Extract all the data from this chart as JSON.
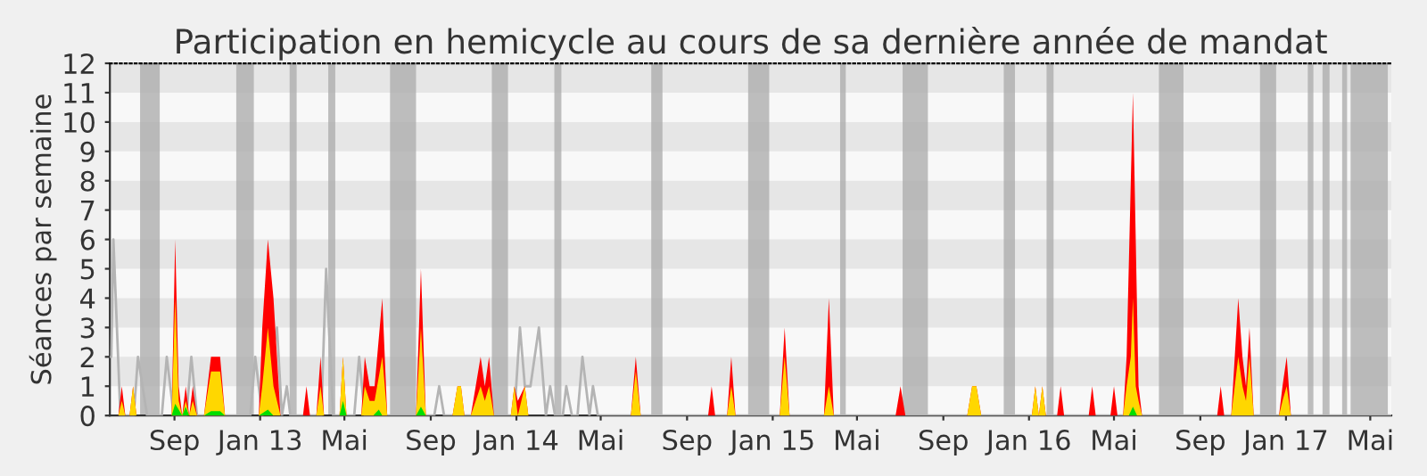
{
  "chart_data": {
    "type": "area",
    "title": "Participation en hemicycle au cours de sa dernière année de mandat",
    "ylabel": "Séances par semaine",
    "xlim": [
      "2012-06-01",
      "2017-05-31"
    ],
    "ylim": [
      0,
      12
    ],
    "yticks": [
      0,
      1,
      2,
      3,
      4,
      5,
      6,
      7,
      8,
      9,
      10,
      11,
      12
    ],
    "xticks": [
      {
        "value": "2012-09-01",
        "label": "Sep"
      },
      {
        "value": "2013-01-01",
        "label": "Jan 13"
      },
      {
        "value": "2013-05-01",
        "label": "Mai"
      },
      {
        "value": "2013-09-01",
        "label": "Sep"
      },
      {
        "value": "2014-01-01",
        "label": "Jan 14"
      },
      {
        "value": "2014-05-01",
        "label": "Mai"
      },
      {
        "value": "2014-09-01",
        "label": "Sep"
      },
      {
        "value": "2015-01-01",
        "label": "Jan 15"
      },
      {
        "value": "2015-05-01",
        "label": "Mai"
      },
      {
        "value": "2015-09-01",
        "label": "Sep"
      },
      {
        "value": "2016-01-01",
        "label": "Jan 16"
      },
      {
        "value": "2016-05-01",
        "label": "Mai"
      },
      {
        "value": "2016-09-01",
        "label": "Sep"
      },
      {
        "value": "2017-01-01",
        "label": "Jan 17"
      },
      {
        "value": "2017-05-01",
        "label": "Mai"
      }
    ],
    "grid": false,
    "legend": false,
    "series": [
      {
        "type": "line",
        "color": "#b4b4b4",
        "x": [
          "2012-06-01",
          "2012-06-03",
          "2012-06-06",
          "2012-06-16",
          "2012-07-05",
          "2012-07-11",
          "2012-07-24",
          "2012-08-14",
          "2012-08-21",
          "2012-08-31",
          "2012-09-18",
          "2012-09-25",
          "2012-10-03",
          "2012-12-18",
          "2012-12-25",
          "2013-01-04",
          "2013-01-25",
          "2013-02-01",
          "2013-02-08",
          "2013-02-13",
          "2013-03-29",
          "2013-04-05",
          "2013-04-15",
          "2013-05-15",
          "2013-05-22",
          "2013-05-30",
          "2013-09-06",
          "2013-09-13",
          "2013-09-20",
          "2013-12-29",
          "2014-01-06",
          "2014-01-13",
          "2014-01-21",
          "2014-02-02",
          "2014-02-12",
          "2014-02-18",
          "2014-02-25",
          "2014-03-08",
          "2014-03-13",
          "2014-03-21",
          "2014-03-29",
          "2014-04-05",
          "2014-04-15",
          "2014-04-20",
          "2014-04-27",
          "2017-05-31"
        ],
        "values": [
          2,
          2,
          6,
          0,
          0,
          2,
          0,
          0,
          2,
          0,
          0,
          2,
          0,
          0,
          2,
          0,
          3,
          0,
          1,
          0,
          0,
          5,
          0,
          0,
          2,
          0,
          0,
          1,
          0,
          0,
          3,
          1,
          1,
          3,
          0,
          1,
          0,
          0,
          1,
          0,
          0,
          2,
          0,
          1,
          0,
          0
        ]
      },
      {
        "color": "#ff0000",
        "x": [
          "2012-06-01",
          "2012-06-13",
          "2012-06-18",
          "2012-06-23",
          "2012-06-29",
          "2012-07-04",
          "2012-07-09",
          "2012-08-28",
          "2012-09-02",
          "2012-09-07",
          "2012-09-12",
          "2012-09-17",
          "2012-09-22",
          "2012-09-27",
          "2012-10-03",
          "2012-10-13",
          "2012-10-23",
          "2012-11-05",
          "2012-11-12",
          "2012-12-30",
          "2013-01-04",
          "2013-01-12",
          "2013-01-20",
          "2013-01-30",
          "2013-03-03",
          "2013-03-08",
          "2013-03-13",
          "2013-03-22",
          "2013-03-28",
          "2013-04-02",
          "2013-04-24",
          "2013-04-29",
          "2013-05-04",
          "2013-05-25",
          "2013-05-30",
          "2013-06-06",
          "2013-06-13",
          "2013-06-24",
          "2013-07-01",
          "2013-08-11",
          "2013-08-18",
          "2013-08-25",
          "2013-10-02",
          "2013-10-09",
          "2013-10-14",
          "2013-10-19",
          "2013-10-28",
          "2013-11-04",
          "2013-11-11",
          "2013-11-17",
          "2013-11-23",
          "2013-11-30",
          "2013-12-24",
          "2013-12-29",
          "2014-01-03",
          "2014-01-13",
          "2014-01-18",
          "2014-06-13",
          "2014-06-20",
          "2014-06-27",
          "2014-10-01",
          "2014-10-06",
          "2014-10-11",
          "2014-10-28",
          "2014-11-03",
          "2014-11-09",
          "2015-01-11",
          "2015-01-18",
          "2015-01-25",
          "2015-03-15",
          "2015-03-22",
          "2015-03-29",
          "2015-06-25",
          "2015-07-02",
          "2015-07-09",
          "2015-10-05",
          "2015-10-12",
          "2015-10-18",
          "2015-10-25",
          "2016-01-05",
          "2016-01-10",
          "2016-01-15",
          "2016-01-20",
          "2016-01-25",
          "2016-02-10",
          "2016-02-15",
          "2016-02-20",
          "2016-03-26",
          "2016-03-31",
          "2016-04-05",
          "2016-04-26",
          "2016-05-01",
          "2016-05-06",
          "2016-05-14",
          "2016-05-19",
          "2016-05-25",
          "2016-05-28",
          "2016-06-01",
          "2016-06-05",
          "2016-06-10",
          "2016-09-25",
          "2016-09-30",
          "2016-10-05",
          "2016-10-15",
          "2016-10-20",
          "2016-10-25",
          "2016-10-31",
          "2016-11-05",
          "2016-11-10",
          "2016-11-16",
          "2016-12-22",
          "2016-12-27",
          "2017-01-02",
          "2017-01-08",
          "2017-05-31"
        ],
        "values": [
          0,
          0,
          1,
          0,
          0,
          1,
          0,
          0,
          6,
          1,
          0,
          1,
          0,
          1,
          0,
          0,
          2,
          2,
          0,
          0,
          3,
          6,
          4,
          0,
          0,
          1,
          0,
          0,
          2,
          0,
          0,
          2,
          0,
          0,
          2,
          1,
          1,
          4,
          0,
          0,
          5,
          0,
          0,
          1,
          1,
          0,
          0,
          1,
          2,
          1,
          2,
          0,
          0,
          1,
          0.5,
          1,
          0,
          0,
          2,
          0,
          0,
          1,
          0,
          0,
          2,
          0,
          0,
          3,
          0,
          0,
          4,
          0,
          0,
          1,
          0,
          0,
          1,
          1,
          0,
          0,
          1,
          0,
          1,
          0,
          0,
          1,
          0,
          0,
          1,
          0,
          0,
          1,
          0,
          0,
          2,
          8,
          11,
          6,
          1,
          0,
          0,
          1,
          0,
          0,
          2,
          4,
          2,
          1,
          3,
          0,
          0,
          1,
          2,
          0,
          0
        ]
      },
      {
        "color": "#ffd700",
        "x": [
          "2012-06-01",
          "2012-06-13",
          "2012-06-18",
          "2012-06-23",
          "2012-06-29",
          "2012-07-04",
          "2012-07-09",
          "2012-08-28",
          "2012-09-02",
          "2012-09-07",
          "2012-09-12",
          "2012-09-17",
          "2012-09-22",
          "2012-09-27",
          "2012-10-03",
          "2012-10-13",
          "2012-10-23",
          "2012-11-05",
          "2012-11-12",
          "2012-12-30",
          "2013-01-04",
          "2013-01-12",
          "2013-01-20",
          "2013-01-30",
          "2013-03-22",
          "2013-03-28",
          "2013-04-02",
          "2013-04-24",
          "2013-04-29",
          "2013-05-04",
          "2013-05-25",
          "2013-05-30",
          "2013-06-06",
          "2013-06-13",
          "2013-06-24",
          "2013-07-01",
          "2013-08-11",
          "2013-08-18",
          "2013-08-25",
          "2013-10-02",
          "2013-10-09",
          "2013-10-14",
          "2013-10-19",
          "2013-10-28",
          "2013-11-04",
          "2013-11-11",
          "2013-11-17",
          "2013-11-23",
          "2013-11-30",
          "2013-12-24",
          "2013-12-29",
          "2014-01-03",
          "2014-01-13",
          "2014-01-18",
          "2014-06-13",
          "2014-06-20",
          "2014-06-27",
          "2014-10-28",
          "2014-11-03",
          "2014-11-09",
          "2015-01-11",
          "2015-01-18",
          "2015-01-25",
          "2015-03-15",
          "2015-03-22",
          "2015-03-29",
          "2015-10-05",
          "2015-10-12",
          "2015-10-18",
          "2015-10-25",
          "2016-01-05",
          "2016-01-10",
          "2016-01-15",
          "2016-01-20",
          "2016-01-25",
          "2016-05-14",
          "2016-05-19",
          "2016-05-25",
          "2016-05-28",
          "2016-06-01",
          "2016-06-05",
          "2016-06-10",
          "2016-10-15",
          "2016-10-20",
          "2016-10-25",
          "2016-10-31",
          "2016-11-05",
          "2016-11-10",
          "2016-11-16",
          "2016-12-22",
          "2016-12-27",
          "2017-01-02",
          "2017-01-08",
          "2017-05-31"
        ],
        "values": [
          0,
          0,
          0.5,
          0,
          0,
          1,
          0,
          0,
          4,
          0.5,
          0,
          0.5,
          0,
          0.5,
          0,
          0,
          1.5,
          1.5,
          0,
          0,
          1,
          3,
          1,
          0,
          0,
          1,
          0,
          0,
          2,
          0,
          0,
          1,
          0.5,
          0.5,
          2,
          0,
          0,
          3,
          0,
          0,
          1,
          1,
          0,
          0,
          0.5,
          1,
          0.5,
          1,
          0,
          0,
          1,
          0,
          1,
          0,
          0,
          1.5,
          0,
          0,
          1,
          0,
          0,
          2,
          0,
          0,
          1,
          0,
          0,
          1,
          1,
          0,
          0,
          1,
          0,
          1,
          0,
          0,
          1,
          2,
          4,
          1,
          0.5,
          0,
          0,
          1,
          2,
          1,
          0.5,
          2,
          0,
          0,
          0.5,
          1,
          0,
          0
        ]
      },
      {
        "color": "#00dd00",
        "x": [
          "2012-06-01",
          "2012-08-28",
          "2012-09-02",
          "2012-09-07",
          "2012-09-12",
          "2012-09-17",
          "2012-09-22",
          "2012-10-13",
          "2012-10-23",
          "2012-11-05",
          "2012-11-12",
          "2012-12-30",
          "2013-01-12",
          "2013-01-20",
          "2013-04-24",
          "2013-04-29",
          "2013-05-04",
          "2013-06-11",
          "2013-06-19",
          "2013-06-24",
          "2013-08-11",
          "2013-08-18",
          "2013-08-25",
          "2016-05-22",
          "2016-05-28",
          "2016-06-03",
          "2017-05-31"
        ],
        "values": [
          0,
          0,
          0.4,
          0.2,
          0,
          0.3,
          0,
          0,
          0.15,
          0.15,
          0,
          0,
          0.2,
          0,
          0,
          0.5,
          0,
          0,
          0.2,
          0,
          0,
          0.3,
          0,
          0,
          0.3,
          0,
          0
        ]
      }
    ],
    "bands": [
      {
        "axis": "y",
        "from": 1,
        "to": 2,
        "color": "#e6e6e6"
      },
      {
        "axis": "y",
        "from": 3,
        "to": 4,
        "color": "#e6e6e6"
      },
      {
        "axis": "y",
        "from": 5,
        "to": 6,
        "color": "#e6e6e6"
      },
      {
        "axis": "y",
        "from": 7,
        "to": 8,
        "color": "#e6e6e6"
      },
      {
        "axis": "y",
        "from": 9,
        "to": 10,
        "color": "#e6e6e6"
      },
      {
        "axis": "y",
        "from": 11,
        "to": 12,
        "color": "#e6e6e6"
      },
      {
        "axis": "x",
        "from": "2012-07-14",
        "to": "2012-08-11",
        "color": "#aaaaaa"
      },
      {
        "axis": "x",
        "from": "2012-11-28",
        "to": "2012-12-23",
        "color": "#aaaaaa"
      },
      {
        "axis": "x",
        "from": "2013-02-12",
        "to": "2013-02-22",
        "color": "#aaaaaa"
      },
      {
        "axis": "x",
        "from": "2013-04-08",
        "to": "2013-04-18",
        "color": "#aaaaaa"
      },
      {
        "axis": "x",
        "from": "2013-07-05",
        "to": "2013-08-11",
        "color": "#aaaaaa"
      },
      {
        "axis": "x",
        "from": "2013-11-27",
        "to": "2013-12-20",
        "color": "#aaaaaa"
      },
      {
        "axis": "x",
        "from": "2014-02-24",
        "to": "2014-03-06",
        "color": "#aaaaaa"
      },
      {
        "axis": "x",
        "from": "2014-07-12",
        "to": "2014-07-28",
        "color": "#aaaaaa"
      },
      {
        "axis": "x",
        "from": "2014-11-27",
        "to": "2014-12-27",
        "color": "#aaaaaa"
      },
      {
        "axis": "x",
        "from": "2015-04-07",
        "to": "2015-04-15",
        "color": "#aaaaaa"
      },
      {
        "axis": "x",
        "from": "2015-07-05",
        "to": "2015-08-10",
        "color": "#aaaaaa"
      },
      {
        "axis": "x",
        "from": "2015-11-26",
        "to": "2015-12-12",
        "color": "#aaaaaa"
      },
      {
        "axis": "x",
        "from": "2016-01-26",
        "to": "2016-02-05",
        "color": "#aaaaaa"
      },
      {
        "axis": "x",
        "from": "2016-07-04",
        "to": "2016-08-08",
        "color": "#aaaaaa"
      },
      {
        "axis": "x",
        "from": "2016-11-25",
        "to": "2016-12-18",
        "color": "#aaaaaa"
      },
      {
        "axis": "x",
        "from": "2017-02-01",
        "to": "2017-02-09",
        "color": "#aaaaaa"
      },
      {
        "axis": "x",
        "from": "2017-02-22",
        "to": "2017-03-04",
        "color": "#aaaaaa"
      },
      {
        "axis": "x",
        "from": "2017-03-22",
        "to": "2017-03-29",
        "color": "#aaaaaa"
      },
      {
        "axis": "x",
        "from": "2017-04-03",
        "to": "2017-05-26",
        "color": "#aaaaaa"
      }
    ]
  }
}
